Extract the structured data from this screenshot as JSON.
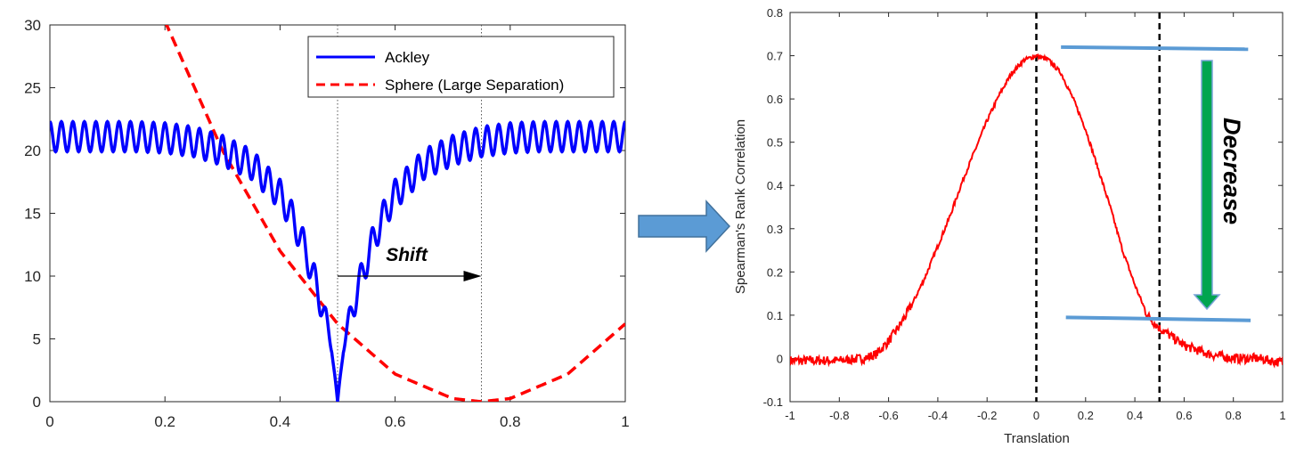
{
  "chart_data": [
    {
      "type": "line",
      "title": "",
      "xlabel": "",
      "ylabel": "",
      "xlim": [
        0,
        1
      ],
      "ylim": [
        0,
        30
      ],
      "xticks": [
        "0",
        "0.2",
        "0.4",
        "0.6",
        "0.8",
        "1"
      ],
      "yticks": [
        "0",
        "5",
        "10",
        "15",
        "20",
        "25",
        "30"
      ],
      "grid": false,
      "legend_position": "top-right",
      "series": [
        {
          "name": "Ackley",
          "color": "#0000ff",
          "style": "solid",
          "x": [
            0,
            0.05,
            0.1,
            0.15,
            0.2,
            0.25,
            0.3,
            0.35,
            0.4,
            0.42,
            0.44,
            0.46,
            0.48,
            0.49,
            0.5,
            0.51,
            0.52,
            0.54,
            0.56,
            0.58,
            0.6,
            0.65,
            0.7,
            0.75,
            0.8,
            0.85,
            0.9,
            0.95,
            1
          ],
          "y": [
            21.1,
            21.1,
            21.1,
            21.1,
            21.0,
            20.7,
            20.0,
            18.9,
            16.5,
            14.8,
            12.6,
            9.7,
            6.5,
            4.3,
            0,
            4.3,
            6.5,
            9.7,
            12.6,
            14.8,
            16.5,
            18.9,
            20.0,
            20.7,
            21.0,
            21.1,
            21.1,
            21.1,
            21.1
          ],
          "oscillation_amplitude": 1.2,
          "oscillation_period": 0.02
        },
        {
          "name": "Sphere (Large Separation)",
          "color": "#ff0000",
          "style": "dashed",
          "x": [
            0.2,
            0.3,
            0.4,
            0.5,
            0.6,
            0.7,
            0.75,
            0.8,
            0.9,
            1
          ],
          "y": [
            30.3,
            20.0,
            12.0,
            6.2,
            2.2,
            0.25,
            0,
            0.25,
            2.2,
            6.2
          ]
        }
      ],
      "vlines": [
        0.5,
        0.75
      ],
      "annotations": [
        {
          "text": "Shift",
          "x": 0.62,
          "y": 11.5
        }
      ],
      "arrow": {
        "from": [
          0.5,
          10
        ],
        "to": [
          0.75,
          10
        ]
      }
    },
    {
      "type": "line",
      "title": "",
      "xlabel": "Translation",
      "ylabel": "Spearman's Rank Correlation",
      "xlim": [
        -1,
        1
      ],
      "ylim": [
        -0.1,
        0.8
      ],
      "xticks": [
        "-1",
        "-0.8",
        "-0.6",
        "-0.4",
        "-0.2",
        "0",
        "0.2",
        "0.4",
        "0.6",
        "0.8",
        "1"
      ],
      "yticks": [
        "-0.1",
        "0",
        "0.1",
        "0.2",
        "0.3",
        "0.4",
        "0.5",
        "0.6",
        "0.7",
        "0.8"
      ],
      "grid": false,
      "series": [
        {
          "color": "#ff0000",
          "x": [
            -1,
            -0.9,
            -0.8,
            -0.7,
            -0.65,
            -0.6,
            -0.55,
            -0.5,
            -0.45,
            -0.4,
            -0.35,
            -0.3,
            -0.25,
            -0.2,
            -0.15,
            -0.1,
            -0.05,
            0,
            0.05,
            0.1,
            0.15,
            0.2,
            0.25,
            0.3,
            0.35,
            0.4,
            0.45,
            0.5,
            0.55,
            0.6,
            0.7,
            0.8,
            0.9,
            1
          ],
          "y": [
            -0.005,
            -0.005,
            -0.005,
            0.0,
            0.01,
            0.04,
            0.08,
            0.13,
            0.19,
            0.26,
            0.33,
            0.41,
            0.48,
            0.55,
            0.61,
            0.66,
            0.69,
            0.7,
            0.69,
            0.66,
            0.6,
            0.53,
            0.44,
            0.35,
            0.25,
            0.17,
            0.1,
            0.07,
            0.05,
            0.03,
            0.01,
            0.0,
            0.0,
            -0.01
          ]
        }
      ],
      "vlines": [
        0,
        0.5
      ],
      "blue_lines": [
        {
          "x": [
            0.1,
            0.86
          ],
          "y": [
            0.72,
            0.715
          ]
        },
        {
          "x": [
            0.12,
            0.87
          ],
          "y": [
            0.095,
            0.088
          ]
        }
      ],
      "annotations": [
        {
          "text": "Decrease",
          "x": 0.9,
          "y": 0.4,
          "rotation": 90
        }
      ]
    }
  ],
  "arrow_colors": {
    "connector_fill": "#5b9bd5",
    "connector_stroke": "#41719c",
    "decrease_fill": "#00a550",
    "decrease_stroke": "#7aa3d8",
    "blue_line": "#5b9bd5"
  }
}
